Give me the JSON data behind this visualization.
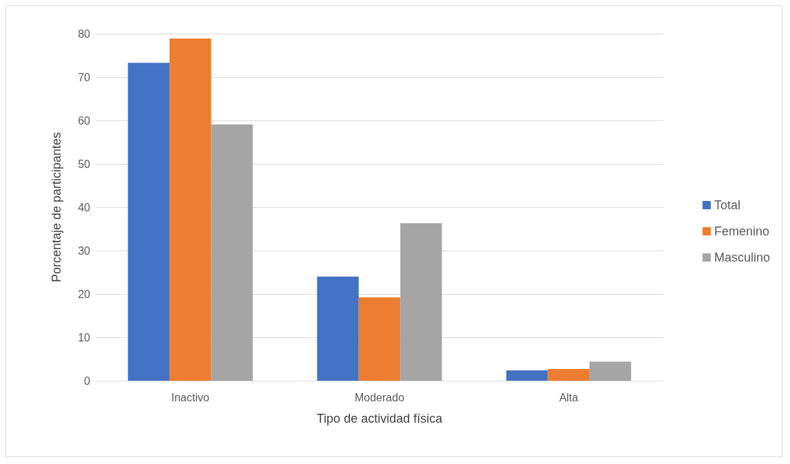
{
  "chart_data": {
    "type": "bar",
    "xlabel": "Tipo de actividad física",
    "ylabel": "Porcentaje de participantes",
    "categories": [
      "Inactivo",
      "Moderado",
      "Alta"
    ],
    "series": [
      {
        "name": "Total",
        "color": "#4472c4",
        "values": [
          73.3,
          24.0,
          2.4
        ]
      },
      {
        "name": "Femenino",
        "color": "#ed7d31",
        "values": [
          78.9,
          19.2,
          2.7
        ]
      },
      {
        "name": "Masculino",
        "color": "#a5a5a5",
        "values": [
          59.1,
          36.3,
          4.4
        ]
      }
    ],
    "ylim": [
      0,
      80
    ],
    "yticks": [
      0,
      10,
      20,
      30,
      40,
      50,
      60,
      70,
      80
    ],
    "grid": "y",
    "legend": "right"
  }
}
